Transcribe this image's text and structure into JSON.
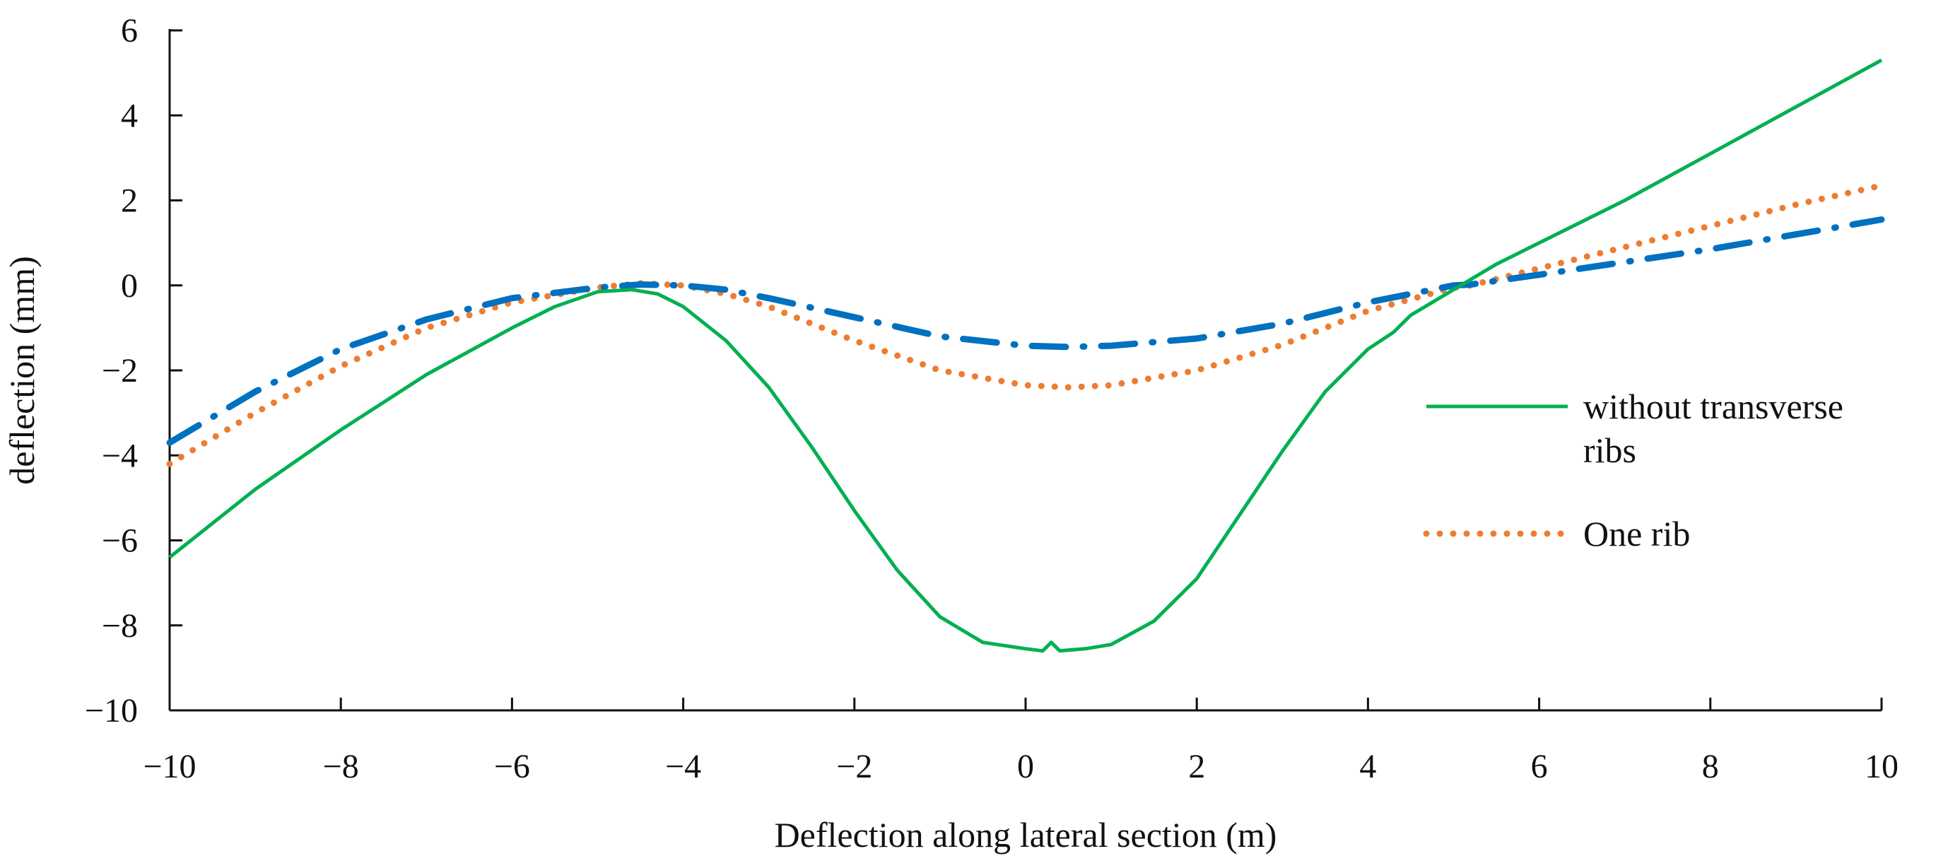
{
  "chart_data": {
    "type": "line",
    "title": "",
    "xlabel": "Deflection along lateral section (m)",
    "ylabel": "deflection (mm)",
    "xlim": [
      -10,
      10
    ],
    "ylim": [
      -10,
      6
    ],
    "xticks": [
      -10,
      -8,
      -6,
      -4,
      -2,
      0,
      2,
      4,
      6,
      8,
      10
    ],
    "yticks": [
      -10,
      -8,
      -6,
      -4,
      -2,
      0,
      2,
      4,
      6
    ],
    "xtick_labels": [
      "−10",
      "−8",
      "−6",
      "−4",
      "−2",
      "0",
      "2",
      "4",
      "6",
      "8",
      "10"
    ],
    "ytick_labels": [
      "−10",
      "−8",
      "−6",
      "−4",
      "−2",
      "0",
      "2",
      "4",
      "6"
    ],
    "grid": false,
    "legend_position": "right",
    "series": [
      {
        "name": "without transverse ribs",
        "legend_lines": [
          "without transverse",
          "ribs"
        ],
        "style": "solid",
        "color": "#00b050",
        "x": [
          -10,
          -9,
          -8,
          -7,
          -6,
          -5.5,
          -5,
          -4.6,
          -4.3,
          -4,
          -3.5,
          -3,
          -2.5,
          -2,
          -1.5,
          -1,
          -0.5,
          0,
          0.2,
          0.3,
          0.4,
          0.7,
          1,
          1.5,
          2,
          2.5,
          3,
          3.5,
          4,
          4.3,
          4.5,
          5,
          5.5,
          6,
          7,
          8,
          9,
          10
        ],
        "y": [
          -6.4,
          -4.8,
          -3.4,
          -2.1,
          -1.0,
          -0.5,
          -0.15,
          -0.1,
          -0.2,
          -0.5,
          -1.3,
          -2.4,
          -3.8,
          -5.3,
          -6.7,
          -7.8,
          -8.4,
          -8.55,
          -8.6,
          -8.4,
          -8.6,
          -8.55,
          -8.45,
          -7.9,
          -6.9,
          -5.4,
          -3.9,
          -2.5,
          -1.5,
          -1.1,
          -0.7,
          -0.1,
          0.5,
          1.0,
          2.0,
          3.1,
          4.2,
          5.3
        ]
      },
      {
        "name": "One rib",
        "legend_lines": [
          "One rib"
        ],
        "style": "dotted",
        "color": "#ed7d31",
        "x": [
          -10,
          -9,
          -8,
          -7,
          -6,
          -5,
          -4.5,
          -4,
          -3.5,
          -3,
          -2,
          -1,
          0,
          0.5,
          1,
          2,
          3,
          4,
          5,
          5.2,
          6,
          7,
          8,
          9,
          10
        ],
        "y": [
          -4.2,
          -3.0,
          -1.9,
          -1.0,
          -0.4,
          -0.05,
          0.05,
          0.0,
          -0.2,
          -0.5,
          -1.3,
          -2.0,
          -2.35,
          -2.4,
          -2.35,
          -2.0,
          -1.4,
          -0.6,
          -0.05,
          0.0,
          0.4,
          0.9,
          1.4,
          1.9,
          2.35
        ]
      },
      {
        "name": "",
        "legend_lines": [],
        "style": "dash-dot",
        "color": "#0070c0",
        "x": [
          -10,
          -9,
          -8,
          -7,
          -6,
          -5,
          -4.5,
          -4,
          -3.5,
          -3,
          -2,
          -1,
          0,
          0.5,
          1,
          2,
          3,
          4,
          5,
          5.2,
          6,
          7,
          8,
          9,
          10
        ],
        "y": [
          -3.7,
          -2.5,
          -1.5,
          -0.8,
          -0.3,
          -0.05,
          0.02,
          0.0,
          -0.1,
          -0.3,
          -0.75,
          -1.2,
          -1.42,
          -1.45,
          -1.42,
          -1.25,
          -0.9,
          -0.4,
          0.0,
          0.02,
          0.25,
          0.55,
          0.85,
          1.2,
          1.55
        ]
      }
    ]
  }
}
